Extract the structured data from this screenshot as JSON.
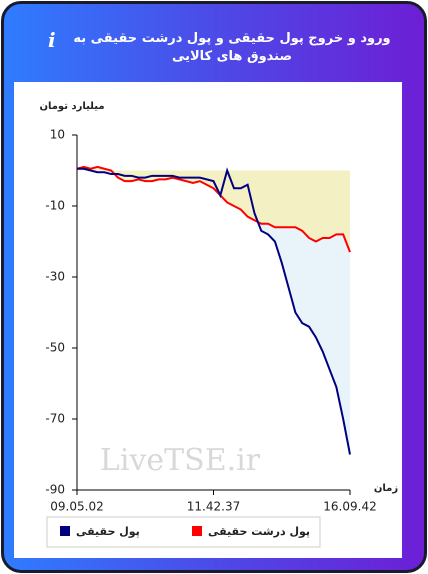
{
  "info_icon": "i",
  "chart_data": {
    "type": "line",
    "title": "ورود و خروج پول حقیقی و پول درشت حقیقی به صندوق های کالایی",
    "y_label": "میلیارد تومان",
    "x_label": "زمان",
    "watermark": "LiveTSE.ir",
    "categories": [
      "09.05.02",
      null,
      null,
      null,
      null,
      null,
      null,
      null,
      null,
      null,
      null,
      null,
      null,
      null,
      null,
      null,
      null,
      null,
      null,
      null,
      "11.42.37",
      null,
      null,
      null,
      null,
      null,
      null,
      null,
      null,
      null,
      null,
      null,
      null,
      null,
      null,
      null,
      null,
      null,
      null,
      null,
      "16.09.42"
    ],
    "series": [
      {
        "name": "پول حقیقی",
        "color": "#000080",
        "fill": "#e6f3fa",
        "values": [
          0.5,
          0.5,
          0,
          -0.5,
          -0.5,
          -1,
          -1,
          -1.5,
          -1.5,
          -2,
          -2,
          -1.5,
          -1.5,
          -1.5,
          -1.5,
          -2,
          -2,
          -2,
          -2,
          -2.5,
          -3,
          -7,
          0,
          -5,
          -5,
          -4,
          -12,
          -17,
          -18,
          -20,
          -26,
          -33,
          -40,
          -43,
          -44,
          -47,
          -51,
          -56,
          -61,
          -70,
          -80
        ]
      },
      {
        "name": "پول درشت حقیقی",
        "color": "#ff0000",
        "fill": "#f4efbe",
        "values": [
          0.5,
          1,
          0.5,
          1,
          0.5,
          0,
          -2,
          -3,
          -3,
          -2.5,
          -3,
          -3,
          -2.5,
          -2.5,
          -2,
          -2.5,
          -3,
          -3.5,
          -3,
          -4,
          -5,
          -7,
          -9,
          -10,
          -11,
          -13,
          -14,
          -15,
          -15,
          -16,
          -16,
          -16,
          -16,
          -17,
          -19,
          -20,
          -19,
          -19,
          -18,
          -18,
          -23
        ]
      }
    ],
    "ylim": [
      -90,
      10
    ],
    "yticks": [
      10,
      -10,
      -30,
      -50,
      -70,
      -90
    ]
  }
}
